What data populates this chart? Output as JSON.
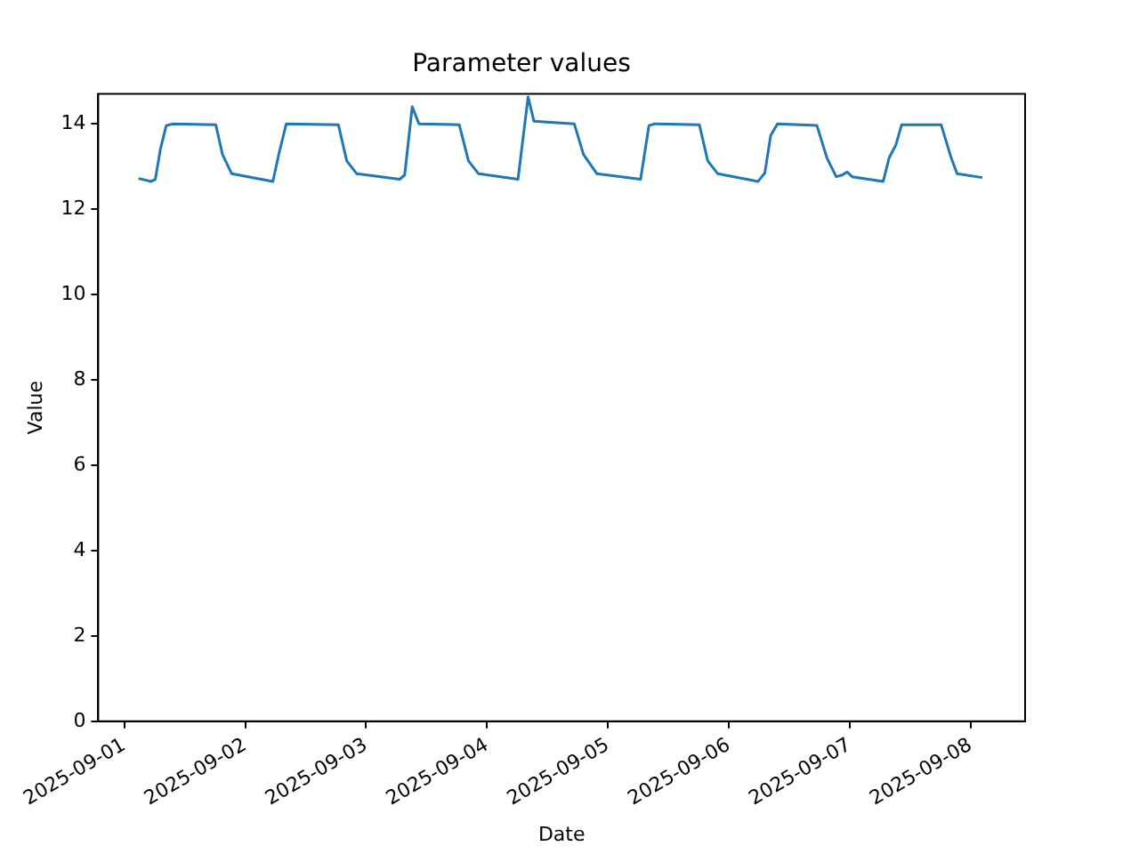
{
  "chart_data": {
    "type": "line",
    "title": "Parameter values",
    "xlabel": "Date",
    "ylabel": "Value",
    "x": [
      "2025-09-01T02:50",
      "2025-09-01T05:20",
      "2025-09-01T06:10",
      "2025-09-01T07:10",
      "2025-09-01T08:20",
      "2025-09-01T09:40",
      "2025-09-01T18:10",
      "2025-09-01T19:30",
      "2025-09-01T21:20",
      "2025-09-02T05:30",
      "2025-09-02T06:40",
      "2025-09-02T08:10",
      "2025-09-02T18:30",
      "2025-09-02T20:10",
      "2025-09-02T22:10",
      "2025-09-03T06:40",
      "2025-09-03T07:40",
      "2025-09-03T09:10",
      "2025-09-03T10:30",
      "2025-09-03T18:30",
      "2025-09-03T20:20",
      "2025-09-03T22:20",
      "2025-09-04T06:10",
      "2025-09-04T08:10",
      "2025-09-04T09:20",
      "2025-09-04T17:20",
      "2025-09-04T19:10",
      "2025-09-04T21:50",
      "2025-09-05T06:30",
      "2025-09-05T08:10",
      "2025-09-05T09:20",
      "2025-09-05T18:10",
      "2025-09-05T19:50",
      "2025-09-05T21:50",
      "2025-09-06T05:50",
      "2025-09-06T07:10",
      "2025-09-06T08:20",
      "2025-09-06T09:40",
      "2025-09-06T17:30",
      "2025-09-06T19:30",
      "2025-09-06T21:20",
      "2025-09-06T22:30",
      "2025-09-06T23:30",
      "2025-09-07T00:30",
      "2025-09-07T06:40",
      "2025-09-07T07:50",
      "2025-09-07T09:10",
      "2025-09-07T10:20",
      "2025-09-07T18:10",
      "2025-09-07T20:10",
      "2025-09-07T21:20",
      "2025-09-08T02:20"
    ],
    "series": [
      {
        "color": "#1f77b4",
        "values": [
          12.72,
          12.65,
          12.7,
          13.4,
          13.96,
          14.0,
          13.98,
          13.28,
          12.83,
          12.65,
          13.28,
          14.0,
          13.98,
          13.13,
          12.83,
          12.7,
          12.8,
          14.4,
          14.0,
          13.98,
          13.13,
          12.83,
          12.7,
          14.63,
          14.06,
          14.0,
          13.28,
          12.83,
          12.7,
          13.96,
          14.0,
          13.98,
          13.13,
          12.83,
          12.65,
          12.85,
          13.73,
          14.0,
          13.96,
          13.2,
          12.76,
          12.8,
          12.87,
          12.76,
          12.65,
          13.2,
          13.5,
          13.98,
          13.98,
          13.2,
          12.83,
          12.74
        ]
      }
    ],
    "xlim": [
      "2025-08-31T18:50",
      "2025-09-08T10:50"
    ],
    "xticks": [
      "2025-09-01",
      "2025-09-02",
      "2025-09-03",
      "2025-09-04",
      "2025-09-05",
      "2025-09-06",
      "2025-09-07",
      "2025-09-08"
    ],
    "ylim": [
      0,
      14.7
    ],
    "yticks": [
      0,
      2,
      4,
      6,
      8,
      10,
      12,
      14
    ],
    "grid": false,
    "legend": false,
    "marker": "none",
    "line_style": "solid"
  }
}
